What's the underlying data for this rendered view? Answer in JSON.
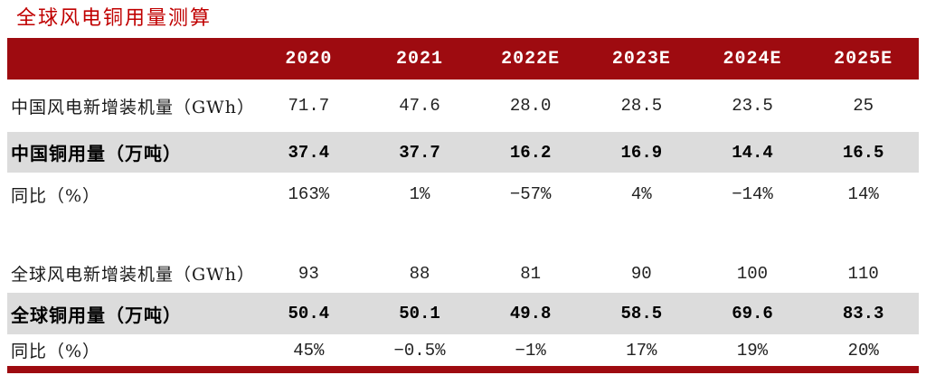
{
  "title": "全球风电铜用量测算",
  "colors": {
    "accent_maroon": "#9E0B10",
    "title_red": "#C00000",
    "highlight_gray": "#DCDCDC",
    "header_text": "#FFFFFF"
  },
  "table": {
    "columns": [
      "2020",
      "2021",
      "2022E",
      "2023E",
      "2024E",
      "2025E"
    ],
    "rows": [
      {
        "label": "中国风电新增装机量（GWh）",
        "values": [
          "71.7",
          "47.6",
          "28.0",
          "28.5",
          "23.5",
          "25"
        ],
        "style": "normal"
      },
      {
        "label": "中国铜用量（万吨）",
        "values": [
          "37.4",
          "37.7",
          "16.2",
          "16.9",
          "14.4",
          "16.5"
        ],
        "style": "highlight"
      },
      {
        "label": "同比（%）",
        "values": [
          "163%",
          "1%",
          "−57%",
          "4%",
          "−14%",
          "14%"
        ],
        "style": "normal"
      },
      {
        "label": "",
        "values": [
          "",
          "",
          "",
          "",
          "",
          ""
        ],
        "style": "spacer"
      },
      {
        "label": "全球风电新增装机量（GWh）",
        "values": [
          "93",
          "88",
          "81",
          "90",
          "100",
          "110"
        ],
        "style": "normal"
      },
      {
        "label": "全球铜用量（万吨）",
        "values": [
          "50.4",
          "50.1",
          "49.8",
          "58.5",
          "69.6",
          "83.3"
        ],
        "style": "highlight"
      },
      {
        "label": "同比（%）",
        "values": [
          "45%",
          "−0.5%",
          "−1%",
          "17%",
          "19%",
          "20%"
        ],
        "style": "normal"
      }
    ]
  }
}
